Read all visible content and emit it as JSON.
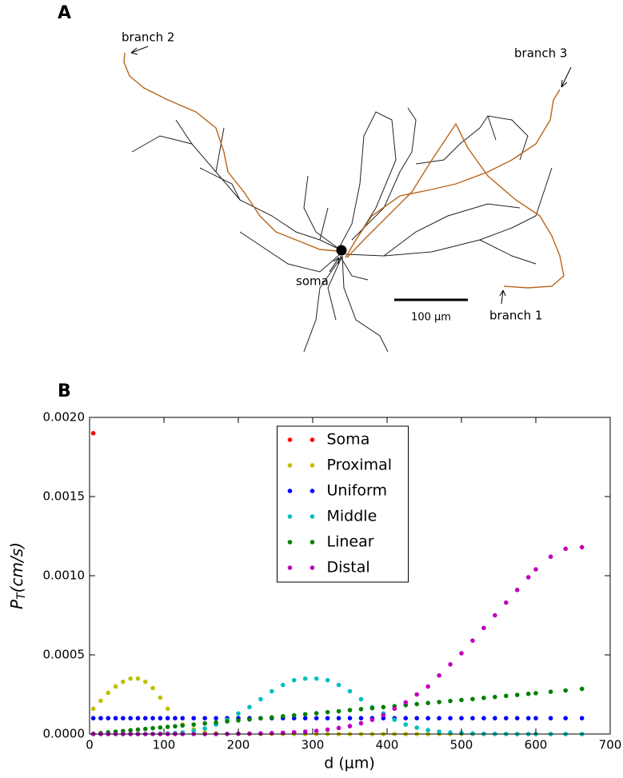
{
  "figure_a": {
    "panel_label": "A",
    "labels": [
      "branch 2",
      "branch 3",
      "soma",
      "branch 1"
    ],
    "scale_bar": "100 μm"
  },
  "chart_data": {
    "type": "scatter",
    "panel_label": "B",
    "xlabel": "d (μm)",
    "ylabel": [
      "P",
      "T",
      "(cm/s)"
    ],
    "xlim": [
      0,
      700
    ],
    "xticks": [
      0,
      100,
      200,
      300,
      400,
      500,
      600,
      700
    ],
    "ylim": [
      0,
      0.002
    ],
    "yticks": [
      {
        "value": 0,
        "label": "0.0000"
      },
      {
        "value": 0.0005,
        "label": "0.0005"
      },
      {
        "value": 0.001,
        "label": "0.0010"
      },
      {
        "value": 0.0015,
        "label": "0.0015"
      },
      {
        "value": 0.002,
        "label": "0.0020"
      }
    ],
    "legend": "upper center",
    "grid": false,
    "x": [
      5,
      15,
      25,
      35,
      45,
      55,
      65,
      75,
      85,
      95,
      105,
      115,
      125,
      140,
      155,
      170,
      185,
      200,
      215,
      230,
      245,
      260,
      275,
      290,
      305,
      320,
      335,
      350,
      365,
      380,
      395,
      410,
      425,
      440,
      455,
      470,
      485,
      500,
      515,
      530,
      545,
      560,
      575,
      590,
      600,
      620,
      640,
      662
    ],
    "series": [
      {
        "name": "Soma",
        "color": "#ff0000",
        "values": [
          0.0019,
          null,
          null,
          null,
          null,
          null,
          null,
          null,
          null,
          null,
          null,
          null,
          null,
          null,
          null,
          null,
          null,
          null,
          null,
          null,
          null,
          null,
          null,
          null,
          null,
          null,
          null,
          null,
          null,
          null,
          null,
          null,
          null,
          null,
          null,
          null,
          null,
          null,
          null,
          null,
          null,
          null,
          null,
          null,
          null,
          null,
          null,
          null
        ]
      },
      {
        "name": "Proximal",
        "color": "#bfbf00",
        "values": [
          0.00016,
          0.00021,
          0.00026,
          0.0003,
          0.00033,
          0.00035,
          0.00035,
          0.00033,
          0.00029,
          0.00023,
          0.00016,
          0.0001,
          6e-05,
          3e-05,
          1e-05,
          5e-06,
          0,
          0,
          0,
          0,
          0,
          0,
          0,
          0,
          0,
          0,
          0,
          0,
          0,
          0,
          0,
          0,
          0,
          0,
          0,
          0,
          0,
          0,
          0,
          0,
          0,
          0,
          0,
          0,
          0,
          0,
          0,
          0
        ]
      },
      {
        "name": "Uniform",
        "color": "#0000ff",
        "values": [
          0.0001,
          0.0001,
          0.0001,
          0.0001,
          0.0001,
          0.0001,
          0.0001,
          0.0001,
          0.0001,
          0.0001,
          0.0001,
          0.0001,
          0.0001,
          0.0001,
          0.0001,
          0.0001,
          0.0001,
          0.0001,
          0.0001,
          0.0001,
          0.0001,
          0.0001,
          0.0001,
          0.0001,
          0.0001,
          0.0001,
          0.0001,
          0.0001,
          0.0001,
          0.0001,
          0.0001,
          0.0001,
          0.0001,
          0.0001,
          0.0001,
          0.0001,
          0.0001,
          0.0001,
          0.0001,
          0.0001,
          0.0001,
          0.0001,
          0.0001,
          0.0001,
          0.0001,
          0.0001,
          0.0001,
          0.0001
        ]
      },
      {
        "name": "Middle",
        "color": "#00bfbf",
        "values": [
          0,
          0,
          0,
          0,
          0,
          0,
          0,
          0,
          1e-06,
          2e-06,
          4e-06,
          6e-06,
          1e-05,
          2e-05,
          3.5e-05,
          6e-05,
          9e-05,
          0.00013,
          0.00017,
          0.00022,
          0.00027,
          0.00031,
          0.00034,
          0.00035,
          0.00035,
          0.00034,
          0.00031,
          0.00027,
          0.00022,
          0.00017,
          0.00013,
          9e-05,
          6e-05,
          4e-05,
          2.5e-05,
          1.5e-05,
          1e-05,
          6e-06,
          4e-06,
          2e-06,
          1e-06,
          1e-06,
          0,
          0,
          0,
          0,
          0,
          0
        ]
      },
      {
        "name": "Linear",
        "color": "#008000",
        "values": [
          2e-06,
          6e-06,
          1.1e-05,
          1.5e-05,
          1.9e-05,
          2.4e-05,
          2.8e-05,
          3.2e-05,
          3.7e-05,
          4.1e-05,
          4.5e-05,
          4.9e-05,
          5.4e-05,
          6e-05,
          6.7e-05,
          7.3e-05,
          8e-05,
          8.6e-05,
          9.2e-05,
          9.9e-05,
          0.000105,
          0.000112,
          0.000118,
          0.000125,
          0.000131,
          0.000138,
          0.000144,
          0.000151,
          0.000157,
          0.000163,
          0.00017,
          0.000176,
          0.000183,
          0.000189,
          0.000196,
          0.000202,
          0.000209,
          0.000215,
          0.000221,
          0.000228,
          0.000234,
          0.000241,
          0.000247,
          0.000254,
          0.000258,
          0.000267,
          0.000275,
          0.000285
        ]
      },
      {
        "name": "Distal",
        "color": "#bf00bf",
        "values": [
          0,
          0,
          0,
          0,
          0,
          0,
          0,
          0,
          0,
          0,
          0,
          0,
          0,
          0,
          0,
          0,
          1e-06,
          2e-06,
          3e-06,
          4e-06,
          6e-06,
          8e-06,
          1.1e-05,
          1.5e-05,
          2e-05,
          2.8e-05,
          3.8e-05,
          5e-05,
          6.8e-05,
          9e-05,
          0.00012,
          0.00016,
          0.0002,
          0.00025,
          0.0003,
          0.00037,
          0.00044,
          0.00051,
          0.00059,
          0.00067,
          0.00075,
          0.00083,
          0.00091,
          0.00099,
          0.00104,
          0.00112,
          0.00117,
          0.00118
        ]
      }
    ]
  }
}
